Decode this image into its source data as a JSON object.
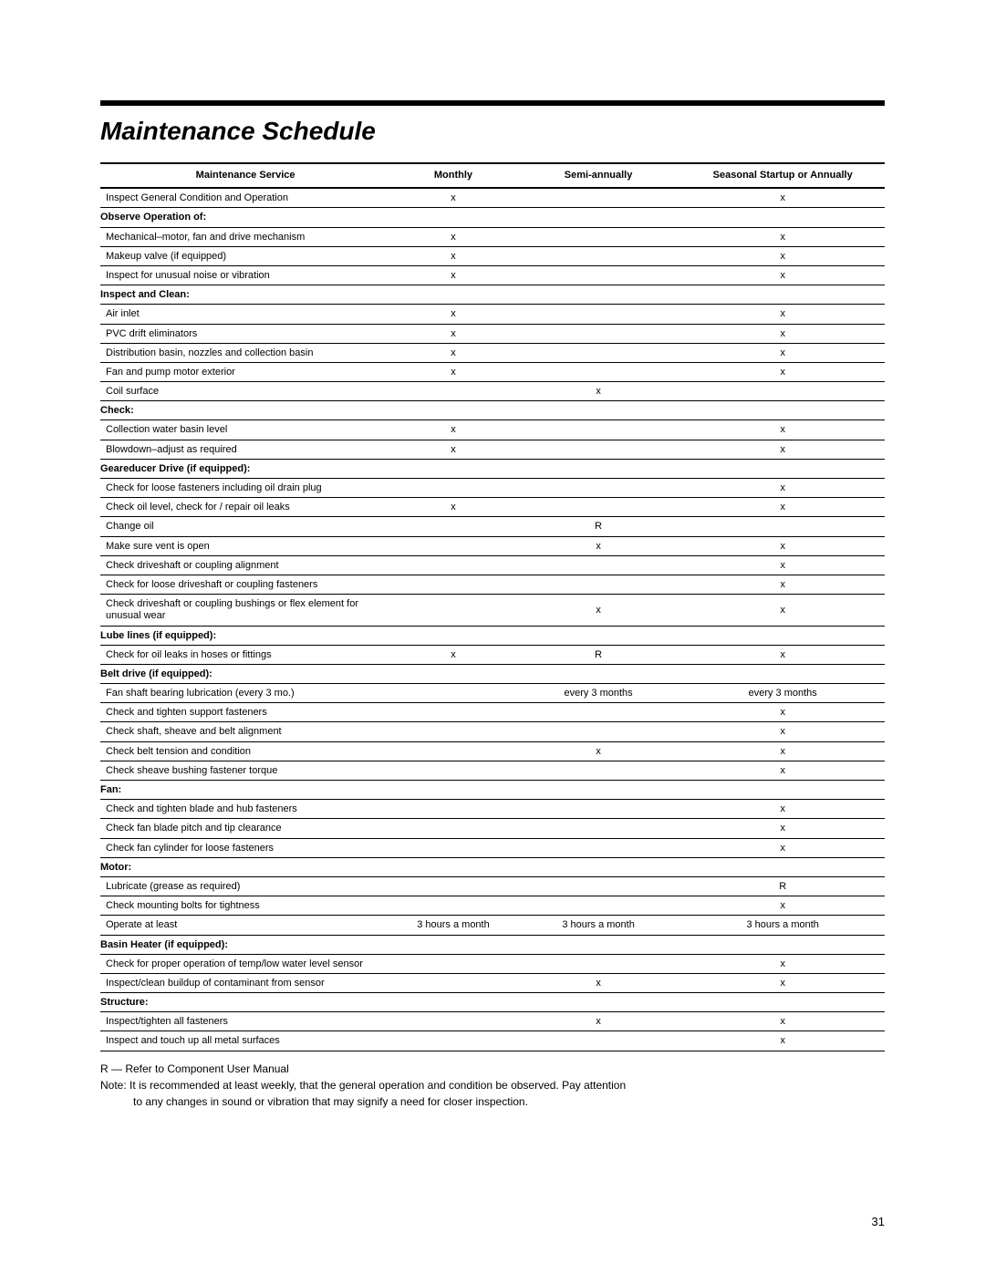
{
  "title": "Maintenance Schedule",
  "columns": [
    "Maintenance Service",
    "Monthly",
    "Semi-annually",
    "Seasonal Startup or Annually"
  ],
  "rows": [
    {
      "type": "item",
      "svc": "Inspect General Condition and Operation",
      "m": "x",
      "sa": "",
      "an": "x"
    },
    {
      "type": "section",
      "svc": "Observe Operation of:"
    },
    {
      "type": "item",
      "svc": "Mechanical–motor, fan and drive mechanism",
      "m": "x",
      "sa": "",
      "an": "x"
    },
    {
      "type": "item",
      "svc": "Makeup valve (if equipped)",
      "m": "x",
      "sa": "",
      "an": "x"
    },
    {
      "type": "item",
      "svc": "Inspect for unusual noise or vibration",
      "m": "x",
      "sa": "",
      "an": "x"
    },
    {
      "type": "section",
      "svc": "Inspect and Clean:"
    },
    {
      "type": "item",
      "svc": "Air inlet",
      "m": "x",
      "sa": "",
      "an": "x"
    },
    {
      "type": "item",
      "svc": "PVC drift eliminators",
      "m": "x",
      "sa": "",
      "an": "x"
    },
    {
      "type": "item",
      "svc": "Distribution basin, nozzles and collection basin",
      "m": "x",
      "sa": "",
      "an": "x"
    },
    {
      "type": "item",
      "svc": "Fan and pump motor exterior",
      "m": "x",
      "sa": "",
      "an": "x"
    },
    {
      "type": "item",
      "svc": "Coil surface",
      "m": "",
      "sa": "x",
      "an": ""
    },
    {
      "type": "section",
      "svc": "Check:"
    },
    {
      "type": "item",
      "svc": "Collection water basin level",
      "m": "x",
      "sa": "",
      "an": "x"
    },
    {
      "type": "item",
      "svc": "Blowdown–adjust as required",
      "m": "x",
      "sa": "",
      "an": "x"
    },
    {
      "type": "section",
      "svc": "Geareducer Drive (if equipped):"
    },
    {
      "type": "item",
      "svc": "Check for loose fasteners including oil drain plug",
      "m": "",
      "sa": "",
      "an": "x"
    },
    {
      "type": "item",
      "svc": "Check oil level, check for / repair oil leaks",
      "m": "x",
      "sa": "",
      "an": "x"
    },
    {
      "type": "item",
      "svc": "Change oil",
      "m": "",
      "sa": "R",
      "an": ""
    },
    {
      "type": "item",
      "svc": "Make sure vent is open",
      "m": "",
      "sa": "x",
      "an": "x"
    },
    {
      "type": "item",
      "svc": "Check driveshaft or coupling alignment",
      "m": "",
      "sa": "",
      "an": "x"
    },
    {
      "type": "item",
      "svc": "Check for loose driveshaft or coupling fasteners",
      "m": "",
      "sa": "",
      "an": "x"
    },
    {
      "type": "item",
      "svc": "Check driveshaft or coupling bushings or flex element for unusual wear",
      "m": "",
      "sa": "x",
      "an": "x"
    },
    {
      "type": "section",
      "svc": "Lube lines (if equipped):"
    },
    {
      "type": "item",
      "svc": "Check for oil leaks in hoses or fittings",
      "m": "x",
      "sa": "R",
      "an": "x"
    },
    {
      "type": "section",
      "svc": "Belt drive (if equipped):"
    },
    {
      "type": "item",
      "svc": "Fan shaft bearing lubrication (every 3 mo.)",
      "m": "",
      "sa": "every 3 months",
      "an": "every 3 months"
    },
    {
      "type": "item",
      "svc": "Check and tighten support fasteners",
      "m": "",
      "sa": "",
      "an": "x"
    },
    {
      "type": "item",
      "svc": "Check shaft, sheave and belt alignment",
      "m": "",
      "sa": "",
      "an": "x"
    },
    {
      "type": "item",
      "svc": "Check belt tension and condition",
      "m": "",
      "sa": "x",
      "an": "x"
    },
    {
      "type": "item",
      "svc": "Check sheave bushing fastener torque",
      "m": "",
      "sa": "",
      "an": "x"
    },
    {
      "type": "section",
      "svc": "Fan:"
    },
    {
      "type": "item",
      "svc": "Check and tighten blade and hub fasteners",
      "m": "",
      "sa": "",
      "an": "x"
    },
    {
      "type": "item",
      "svc": "Check fan blade pitch and tip clearance",
      "m": "",
      "sa": "",
      "an": "x"
    },
    {
      "type": "item",
      "svc": "Check fan cylinder for loose fasteners",
      "m": "",
      "sa": "",
      "an": "x"
    },
    {
      "type": "section",
      "svc": "Motor:"
    },
    {
      "type": "item",
      "svc": "Lubricate (grease as required)",
      "m": "",
      "sa": "",
      "an": "R"
    },
    {
      "type": "item",
      "svc": "Check mounting bolts for tightness",
      "m": "",
      "sa": "",
      "an": "x"
    },
    {
      "type": "item",
      "svc": "Operate at least",
      "m": "3 hours a month",
      "sa": "3 hours a month",
      "an": "3 hours a month"
    },
    {
      "type": "section",
      "svc": "Basin Heater (if equipped):"
    },
    {
      "type": "item",
      "svc": "Check for proper operation of temp/low water level sensor",
      "m": "",
      "sa": "",
      "an": "x"
    },
    {
      "type": "item",
      "svc": "Inspect/clean buildup of contaminant from sensor",
      "m": "",
      "sa": "x",
      "an": "x"
    },
    {
      "type": "section",
      "svc": "Structure:"
    },
    {
      "type": "item",
      "svc": "Inspect/tighten all fasteners",
      "m": "",
      "sa": "x",
      "an": "x"
    },
    {
      "type": "item",
      "svc": "Inspect and touch up all metal surfaces",
      "m": "",
      "sa": "",
      "an": "x"
    }
  ],
  "legend": "R — Refer to Component User Manual",
  "note_label": "Note:",
  "note_line1": "It is recommended at least weekly, that the general operation and condition be observed. Pay attention",
  "note_line2": "to any changes in sound or vibration that may signify a need for closer inspection.",
  "page_number": "31"
}
